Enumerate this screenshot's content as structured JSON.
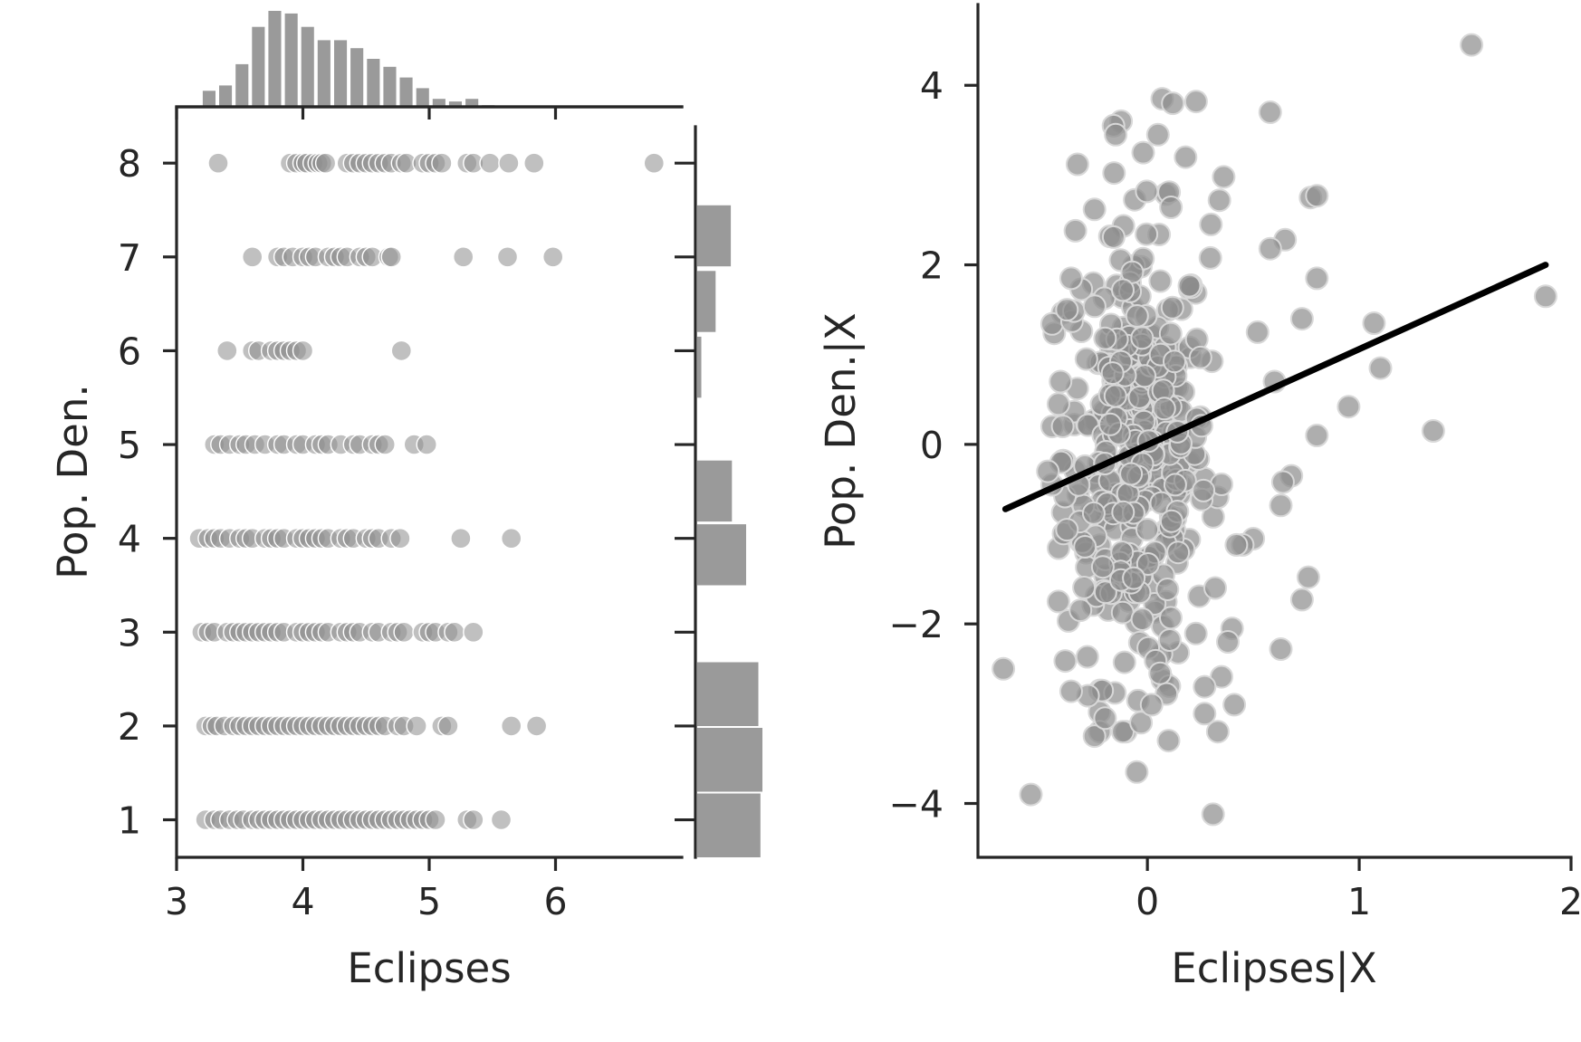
{
  "colors": {
    "point": "#8c8c8c",
    "bar": "#9a9a9a",
    "axis": "#262626",
    "regression_line": "#000000",
    "background": "#ffffff"
  },
  "chart_data": [
    {
      "type": "scatter",
      "subtype": "jointplot-with-marginal-histograms",
      "xlabel": "Eclipses",
      "ylabel": "Pop. Den.",
      "xlim": [
        3.0,
        7.0
      ],
      "ylim": [
        0.6,
        8.6
      ],
      "xticks": [
        3,
        4,
        5,
        6
      ],
      "yticks": [
        1,
        2,
        3,
        4,
        5,
        6,
        7,
        8
      ],
      "grid": false,
      "legend": "none",
      "rows": [
        {
          "y": 8,
          "x": [
            3.33,
            3.9,
            3.95,
            4.0,
            4.03,
            4.08,
            4.12,
            4.15,
            4.18,
            4.35,
            4.4,
            4.45,
            4.5,
            4.55,
            4.6,
            4.65,
            4.7,
            4.78,
            4.82,
            4.95,
            5.0,
            5.05,
            5.1,
            5.3,
            5.35,
            5.48,
            5.63,
            5.83,
            6.78
          ]
        },
        {
          "y": 7,
          "x": [
            3.6,
            3.8,
            3.85,
            3.92,
            4.0,
            4.05,
            4.1,
            4.2,
            4.25,
            4.3,
            4.35,
            4.45,
            4.5,
            4.55,
            4.68,
            4.7,
            5.27,
            5.62,
            5.98
          ]
        },
        {
          "y": 6,
          "x": [
            3.4,
            3.6,
            3.65,
            3.75,
            3.8,
            3.85,
            3.9,
            3.95,
            4.0,
            4.78
          ]
        },
        {
          "y": 5,
          "x": [
            3.3,
            3.35,
            3.42,
            3.5,
            3.55,
            3.62,
            3.7,
            3.8,
            3.85,
            3.95,
            4.0,
            4.1,
            4.15,
            4.2,
            4.3,
            4.4,
            4.45,
            4.55,
            4.6,
            4.65,
            4.88,
            4.98
          ]
        },
        {
          "y": 4,
          "x": [
            3.18,
            3.25,
            3.3,
            3.35,
            3.42,
            3.5,
            3.55,
            3.6,
            3.7,
            3.75,
            3.8,
            3.85,
            3.95,
            4.0,
            4.05,
            4.1,
            4.15,
            4.2,
            4.3,
            4.35,
            4.4,
            4.5,
            4.55,
            4.6,
            4.7,
            4.77,
            5.25,
            5.65
          ]
        },
        {
          "y": 3,
          "x": [
            3.2,
            3.25,
            3.3,
            3.4,
            3.45,
            3.5,
            3.55,
            3.6,
            3.65,
            3.7,
            3.75,
            3.8,
            3.85,
            3.95,
            4.0,
            4.05,
            4.1,
            4.15,
            4.2,
            4.3,
            4.35,
            4.4,
            4.45,
            4.55,
            4.6,
            4.7,
            4.75,
            4.8,
            4.95,
            5.0,
            5.05,
            5.15,
            5.2,
            5.35
          ]
        },
        {
          "y": 2,
          "x": [
            3.23,
            3.28,
            3.32,
            3.38,
            3.45,
            3.5,
            3.55,
            3.6,
            3.65,
            3.7,
            3.75,
            3.8,
            3.85,
            3.9,
            3.95,
            4.0,
            4.05,
            4.1,
            4.15,
            4.2,
            4.25,
            4.3,
            4.35,
            4.4,
            4.45,
            4.5,
            4.55,
            4.6,
            4.65,
            4.75,
            4.8,
            4.9,
            5.1,
            5.15,
            5.65,
            5.85
          ]
        },
        {
          "y": 1,
          "x": [
            3.23,
            3.3,
            3.35,
            3.42,
            3.48,
            3.53,
            3.6,
            3.65,
            3.7,
            3.75,
            3.8,
            3.85,
            3.9,
            3.95,
            4.0,
            4.05,
            4.1,
            4.15,
            4.2,
            4.25,
            4.3,
            4.35,
            4.4,
            4.45,
            4.5,
            4.55,
            4.6,
            4.65,
            4.7,
            4.75,
            4.8,
            4.85,
            4.9,
            4.95,
            5.0,
            5.05,
            5.3,
            5.35,
            5.57
          ]
        }
      ],
      "marginal_x_hist": {
        "bin_width": 0.13,
        "bins": [
          {
            "x0": 3.2,
            "count": 3
          },
          {
            "x0": 3.33,
            "count": 4
          },
          {
            "x0": 3.46,
            "count": 8
          },
          {
            "x0": 3.59,
            "count": 15
          },
          {
            "x0": 3.72,
            "count": 18
          },
          {
            "x0": 3.85,
            "count": 17.5
          },
          {
            "x0": 3.98,
            "count": 15
          },
          {
            "x0": 4.11,
            "count": 12.5
          },
          {
            "x0": 4.24,
            "count": 12.5
          },
          {
            "x0": 4.37,
            "count": 11
          },
          {
            "x0": 4.5,
            "count": 9
          },
          {
            "x0": 4.63,
            "count": 7.5
          },
          {
            "x0": 4.76,
            "count": 5.5
          },
          {
            "x0": 4.89,
            "count": 3.5
          },
          {
            "x0": 5.02,
            "count": 1.5
          },
          {
            "x0": 5.15,
            "count": 1
          },
          {
            "x0": 5.28,
            "count": 1.5
          },
          {
            "x0": 5.41,
            "count": 0.3
          }
        ]
      },
      "marginal_y_hist": {
        "bins": [
          {
            "y0": 0.6,
            "y1": 1.28,
            "count": 62
          },
          {
            "y0": 1.3,
            "y1": 1.98,
            "count": 64
          },
          {
            "y0": 2.0,
            "y1": 2.68,
            "count": 60
          },
          {
            "y0": 3.5,
            "y1": 4.15,
            "count": 48
          },
          {
            "y0": 4.18,
            "y1": 4.83,
            "count": 34
          },
          {
            "y0": 5.5,
            "y1": 6.15,
            "count": 4
          },
          {
            "y0": 6.2,
            "y1": 6.85,
            "count": 18
          },
          {
            "y0": 6.9,
            "y1": 7.55,
            "count": 33
          }
        ]
      }
    },
    {
      "type": "scatter",
      "subtype": "partial-regression-plot",
      "xlabel": "Eclipses|X",
      "ylabel": "Pop. Den.|X",
      "xlim": [
        -0.8,
        2.0
      ],
      "ylim": [
        -4.6,
        4.9
      ],
      "xticks": [
        0,
        1,
        2
      ],
      "yticks": [
        4,
        2,
        0,
        -2,
        -4
      ],
      "ytick_labels": [
        "4",
        "2",
        "0",
        "−2",
        "−4"
      ],
      "grid": false,
      "legend": "none",
      "regression_line": {
        "x": [
          -0.67,
          1.88
        ],
        "y": [
          -0.72,
          2.0
        ]
      },
      "cluster": {
        "center_x": -0.05,
        "center_y": -0.1,
        "sd_x": 0.17,
        "sd_y": 1.25,
        "n": 380
      },
      "outliers": [
        [
          1.53,
          4.45
        ],
        [
          0.58,
          3.7
        ],
        [
          0.07,
          3.85
        ],
        [
          0.12,
          3.8
        ],
        [
          0.23,
          3.82
        ],
        [
          -0.16,
          3.55
        ],
        [
          -0.15,
          3.45
        ],
        [
          -0.33,
          3.12
        ],
        [
          -0.02,
          3.25
        ],
        [
          0.18,
          3.2
        ],
        [
          0.05,
          3.45
        ],
        [
          0.36,
          2.98
        ],
        [
          -0.34,
          2.38
        ],
        [
          0.34,
          2.72
        ],
        [
          0.77,
          2.75
        ],
        [
          0.8,
          2.77
        ],
        [
          0.65,
          2.28
        ],
        [
          0.58,
          2.18
        ],
        [
          0.3,
          2.45
        ],
        [
          0.8,
          1.85
        ],
        [
          -0.38,
          1.5
        ],
        [
          0.73,
          1.4
        ],
        [
          0.52,
          1.25
        ],
        [
          1.88,
          1.65
        ],
        [
          1.07,
          1.35
        ],
        [
          1.1,
          0.85
        ],
        [
          0.95,
          0.42
        ],
        [
          1.35,
          0.15
        ],
        [
          0.8,
          0.1
        ],
        [
          0.6,
          0.7
        ],
        [
          0.68,
          -0.35
        ],
        [
          0.64,
          -0.42
        ],
        [
          0.63,
          -0.68
        ],
        [
          0.5,
          -1.05
        ],
        [
          0.45,
          -1.12
        ],
        [
          0.42,
          -1.12
        ],
        [
          0.32,
          -1.6
        ],
        [
          0.76,
          -1.48
        ],
        [
          0.73,
          -1.73
        ],
        [
          0.4,
          -2.05
        ],
        [
          0.38,
          -2.2
        ],
        [
          0.63,
          -2.28
        ],
        [
          0.27,
          -2.7
        ],
        [
          0.41,
          -2.9
        ],
        [
          0.27,
          -3.0
        ],
        [
          0.31,
          -4.12
        ],
        [
          -0.68,
          -2.5
        ],
        [
          -0.55,
          -3.9
        ],
        [
          -0.05,
          -3.65
        ],
        [
          -0.25,
          -3.25
        ],
        [
          -0.2,
          -3.05
        ],
        [
          -0.28,
          -2.8
        ],
        [
          -0.36,
          -2.75
        ],
        [
          0.09,
          -2.78
        ],
        [
          0.1,
          -3.3
        ],
        [
          -0.42,
          -1.75
        ],
        [
          -0.38,
          -0.95
        ],
        [
          -0.45,
          -0.45
        ],
        [
          -0.47,
          -0.3
        ],
        [
          -0.42,
          0.45
        ],
        [
          -0.4,
          0.2
        ],
        [
          -0.41,
          0.7
        ],
        [
          -0.36,
          1.85
        ],
        [
          -0.03,
          -3.1
        ],
        [
          0.02,
          -2.9
        ],
        [
          0.06,
          -2.55
        ]
      ]
    }
  ]
}
